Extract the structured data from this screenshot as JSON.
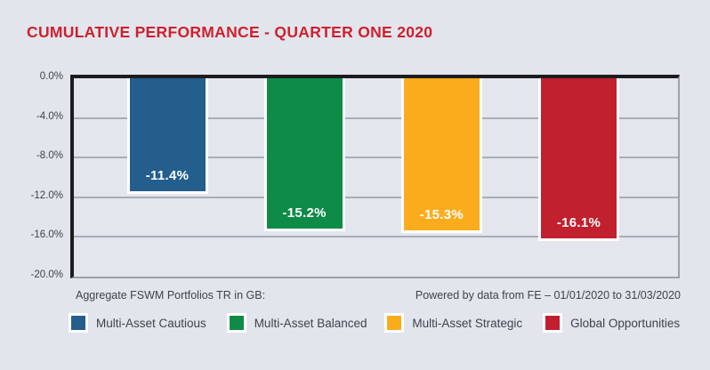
{
  "chart_data": {
    "type": "bar",
    "title": "CUMULATIVE PERFORMANCE - QUARTER ONE 2020",
    "categories": [
      "Multi-Asset Cautious",
      "Multi-Asset Balanced",
      "Multi-Asset Strategic",
      "Global Opportunities"
    ],
    "values": [
      -11.4,
      -15.2,
      -15.3,
      -16.1
    ],
    "bar_labels": [
      "-11.4%",
      "-15.2%",
      "-15.3%",
      "-16.1%"
    ],
    "bar_colors": [
      "#235E8C",
      "#0E8C47",
      "#FBAC1D",
      "#C1202F"
    ],
    "ylim": [
      -20,
      0
    ],
    "yticks": [
      "0.0%",
      "-4.0%",
      "-8.0%",
      "-12.0%",
      "-16.0%",
      "-20.0%"
    ],
    "grid": true,
    "legend_position": "bottom"
  },
  "footer": {
    "left": "Aggregate FSWM Portfolios TR in GB:",
    "right": "Powered by data from FE – 01/01/2020 to 31/03/2020"
  },
  "colors": {
    "background": "#E2E5EC",
    "plot_background": "#E3E6ED",
    "title": "#CE202F",
    "grid": "#A9ADB5",
    "axis_dark": "#1C1C1E",
    "axis_light": "#9CA1A9",
    "text": "#3E424A",
    "bar_label": "#FFFFFF"
  }
}
